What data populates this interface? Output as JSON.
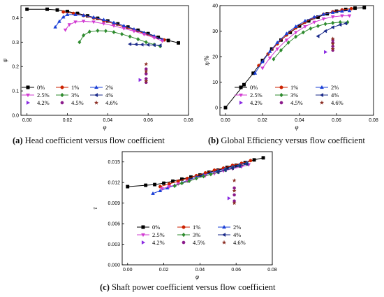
{
  "captions": [
    {
      "tag": "(a)",
      "text": "Head coefficient versus flow coefficient"
    },
    {
      "tag": "(b)",
      "text": "Global Efficiency versus flow coefficient"
    },
    {
      "tag": "(c)",
      "text": "Shaft power coefficient versus flow coefficient"
    }
  ],
  "series_style": [
    {
      "name": "0%",
      "color": "#000000",
      "marker": "square"
    },
    {
      "name": "1%",
      "color": "#cc2200",
      "marker": "circle"
    },
    {
      "name": "2%",
      "color": "#1a3fd6",
      "marker": "triangle-up"
    },
    {
      "name": "2.5%",
      "color": "#d23cd2",
      "marker": "triangle-down"
    },
    {
      "name": "3%",
      "color": "#2e8b2e",
      "marker": "diamond"
    },
    {
      "name": "4%",
      "color": "#1a2a8a",
      "marker": "triangle-left"
    },
    {
      "name": "4.2%",
      "color": "#8a2be2",
      "marker": "triangle-right"
    },
    {
      "name": "4.5%",
      "color": "#8b1a8b",
      "marker": "hexagon"
    },
    {
      "name": "4.6%",
      "color": "#8b2c22",
      "marker": "star"
    }
  ],
  "chart_data": [
    {
      "id": "head",
      "type": "line",
      "title": "",
      "xlabel": "φ",
      "ylabel": "ψ",
      "xlim": [
        -0.003,
        0.08
      ],
      "ylim": [
        0.0,
        0.45
      ],
      "xticks": [
        "0.00",
        "0.02",
        "0.04",
        "0.06",
        "0.08"
      ],
      "xtick_values": [
        0,
        0.02,
        0.04,
        0.06,
        0.08
      ],
      "yticks": [
        "0.0",
        "0.1",
        "0.2",
        "0.3",
        "0.4"
      ],
      "ytick_values": [
        0,
        0.1,
        0.2,
        0.3,
        0.4
      ],
      "legend_position": "bottom-left",
      "series": [
        {
          "name": "0%",
          "x": [
            0.0,
            0.01,
            0.015,
            0.02,
            0.025,
            0.03,
            0.035,
            0.04,
            0.045,
            0.05,
            0.055,
            0.06,
            0.065,
            0.07,
            0.075
          ],
          "y": [
            0.435,
            0.435,
            0.432,
            0.426,
            0.418,
            0.408,
            0.398,
            0.387,
            0.375,
            0.362,
            0.349,
            0.335,
            0.32,
            0.307,
            0.297
          ]
        },
        {
          "name": "1%",
          "x": [
            0.018,
            0.023,
            0.028,
            0.033,
            0.038,
            0.043,
            0.048,
            0.053,
            0.058,
            0.063,
            0.068
          ],
          "y": [
            0.424,
            0.418,
            0.409,
            0.399,
            0.388,
            0.376,
            0.363,
            0.35,
            0.336,
            0.322,
            0.309
          ]
        },
        {
          "name": "2%",
          "x": [
            0.014,
            0.016,
            0.018,
            0.02,
            0.024,
            0.028,
            0.033,
            0.038,
            0.043,
            0.048,
            0.053,
            0.058,
            0.063,
            0.067
          ],
          "y": [
            0.362,
            0.385,
            0.403,
            0.413,
            0.413,
            0.41,
            0.402,
            0.392,
            0.38,
            0.367,
            0.353,
            0.339,
            0.325,
            0.31
          ]
        },
        {
          "name": "2.5%",
          "x": [
            0.019,
            0.021,
            0.024,
            0.028,
            0.033,
            0.038,
            0.043,
            0.048,
            0.053,
            0.058,
            0.063,
            0.067
          ],
          "y": [
            0.35,
            0.372,
            0.383,
            0.386,
            0.383,
            0.376,
            0.367,
            0.356,
            0.345,
            0.332,
            0.318,
            0.305
          ]
        },
        {
          "name": "3%",
          "x": [
            0.026,
            0.028,
            0.031,
            0.035,
            0.039,
            0.043,
            0.047,
            0.051,
            0.055,
            0.059,
            0.063,
            0.066
          ],
          "y": [
            0.3,
            0.328,
            0.343,
            0.347,
            0.346,
            0.341,
            0.333,
            0.323,
            0.312,
            0.3,
            0.29,
            0.283
          ]
        },
        {
          "name": "4%",
          "x": [
            0.051,
            0.054,
            0.057,
            0.06,
            0.063,
            0.066
          ],
          "y": [
            0.292,
            0.291,
            0.29,
            0.289,
            0.288,
            0.287
          ]
        },
        {
          "name": "4.2%",
          "x": [
            0.056
          ],
          "y": [
            0.145
          ]
        },
        {
          "name": "4.5%",
          "x": [
            0.059,
            0.059,
            0.059,
            0.059
          ],
          "y": [
            0.135,
            0.15,
            0.17,
            0.19
          ]
        },
        {
          "name": "4.6%",
          "x": [
            0.059,
            0.059,
            0.059
          ],
          "y": [
            0.14,
            0.18,
            0.21
          ]
        }
      ]
    },
    {
      "id": "efficiency",
      "type": "line",
      "title": "",
      "xlabel": "φ",
      "ylabel": "η/%",
      "xlim": [
        -0.003,
        0.08
      ],
      "ylim": [
        -3,
        40
      ],
      "xticks": [
        "0.00",
        "0.02",
        "0.04",
        "0.06",
        "0.08"
      ],
      "xtick_values": [
        0,
        0.02,
        0.04,
        0.06,
        0.08
      ],
      "yticks": [
        "0",
        "10",
        "20",
        "30",
        "40"
      ],
      "ytick_values": [
        0,
        10,
        20,
        30,
        40
      ],
      "legend_position": "bottom-right",
      "series": [
        {
          "name": "0%",
          "x": [
            0.0,
            0.01,
            0.015,
            0.02,
            0.025,
            0.03,
            0.035,
            0.04,
            0.045,
            0.05,
            0.055,
            0.06,
            0.065,
            0.07,
            0.075
          ],
          "y": [
            0.0,
            9.0,
            13.5,
            18.5,
            23.0,
            26.5,
            29.5,
            32.0,
            34.0,
            35.5,
            36.8,
            37.8,
            38.5,
            39.0,
            39.2
          ]
        },
        {
          "name": "1%",
          "x": [
            0.018,
            0.023,
            0.028,
            0.033,
            0.038,
            0.043,
            0.048,
            0.053,
            0.058,
            0.063,
            0.068
          ],
          "y": [
            16.5,
            21.0,
            25.0,
            28.5,
            31.3,
            33.5,
            35.3,
            36.6,
            37.6,
            38.3,
            38.8
          ]
        },
        {
          "name": "2%",
          "x": [
            0.016,
            0.02,
            0.024,
            0.028,
            0.033,
            0.038,
            0.043,
            0.048,
            0.053,
            0.058,
            0.063,
            0.067
          ],
          "y": [
            13.5,
            18.0,
            22.0,
            25.5,
            29.0,
            31.8,
            34.0,
            35.5,
            36.6,
            37.3,
            37.8,
            38.0
          ]
        },
        {
          "name": "2.5%",
          "x": [
            0.02,
            0.024,
            0.028,
            0.033,
            0.038,
            0.043,
            0.048,
            0.053,
            0.058,
            0.063,
            0.067
          ],
          "y": [
            15.5,
            19.5,
            23.0,
            26.5,
            29.5,
            31.8,
            33.5,
            34.8,
            35.6,
            36.0,
            36.0
          ]
        },
        {
          "name": "3%",
          "x": [
            0.026,
            0.03,
            0.034,
            0.038,
            0.042,
            0.046,
            0.05,
            0.054,
            0.058,
            0.062,
            0.066
          ],
          "y": [
            19.0,
            22.5,
            25.5,
            27.8,
            29.5,
            31.0,
            32.0,
            32.8,
            33.2,
            33.5,
            33.5
          ]
        },
        {
          "name": "4%",
          "x": [
            0.05,
            0.054,
            0.058,
            0.062,
            0.065
          ],
          "y": [
            28.0,
            30.0,
            31.5,
            32.5,
            33.0
          ]
        },
        {
          "name": "4.2%",
          "x": [
            0.054
          ],
          "y": [
            21.8
          ]
        },
        {
          "name": "4.5%",
          "x": [
            0.058,
            0.058,
            0.058,
            0.058
          ],
          "y": [
            22.5,
            24.0,
            25.5,
            26.5
          ]
        },
        {
          "name": "4.6%",
          "x": [
            0.058,
            0.058,
            0.058
          ],
          "y": [
            23.0,
            25.0,
            27.0
          ]
        }
      ]
    },
    {
      "id": "power",
      "type": "line",
      "title": "",
      "xlabel": "φ",
      "ylabel": "τ",
      "xlim": [
        -0.003,
        0.08
      ],
      "ylim": [
        0.0,
        0.0165
      ],
      "xticks": [
        "0.00",
        "0.02",
        "0.04",
        "0.06",
        "0.08"
      ],
      "xtick_values": [
        0,
        0.02,
        0.04,
        0.06,
        0.08
      ],
      "yticks": [
        "0.000",
        "0.003",
        "0.006",
        "0.009",
        "0.012",
        "0.015"
      ],
      "ytick_values": [
        0,
        0.003,
        0.006,
        0.009,
        0.012,
        0.015
      ],
      "legend_position": "bottom-right",
      "series": [
        {
          "name": "0%",
          "x": [
            0.0,
            0.01,
            0.015,
            0.02,
            0.025,
            0.03,
            0.035,
            0.04,
            0.045,
            0.05,
            0.055,
            0.06,
            0.065,
            0.07,
            0.075
          ],
          "y": [
            0.0114,
            0.0116,
            0.0117,
            0.0119,
            0.0122,
            0.0125,
            0.0128,
            0.0131,
            0.0135,
            0.0138,
            0.0142,
            0.0145,
            0.0149,
            0.0153,
            0.0156
          ]
        },
        {
          "name": "1%",
          "x": [
            0.018,
            0.023,
            0.028,
            0.033,
            0.038,
            0.043,
            0.048,
            0.053,
            0.058,
            0.063,
            0.068
          ],
          "y": [
            0.0114,
            0.0118,
            0.0122,
            0.0126,
            0.013,
            0.0134,
            0.0138,
            0.0141,
            0.0145,
            0.0148,
            0.0152
          ]
        },
        {
          "name": "2%",
          "x": [
            0.014,
            0.018,
            0.022,
            0.026,
            0.03,
            0.034,
            0.038,
            0.042,
            0.046,
            0.05,
            0.054,
            0.058,
            0.062,
            0.066
          ],
          "y": [
            0.0104,
            0.0108,
            0.0112,
            0.0116,
            0.012,
            0.0124,
            0.0128,
            0.0131,
            0.0134,
            0.0137,
            0.014,
            0.0143,
            0.0146,
            0.0149
          ]
        },
        {
          "name": "2.5%",
          "x": [
            0.019,
            0.023,
            0.028,
            0.033,
            0.038,
            0.043,
            0.048,
            0.053,
            0.058,
            0.063,
            0.067
          ],
          "y": [
            0.0111,
            0.0114,
            0.0118,
            0.0122,
            0.0126,
            0.013,
            0.0133,
            0.0137,
            0.014,
            0.0143,
            0.0146
          ]
        },
        {
          "name": "3%",
          "x": [
            0.026,
            0.03,
            0.034,
            0.038,
            0.042,
            0.046,
            0.05,
            0.054,
            0.058,
            0.062,
            0.066
          ],
          "y": [
            0.0115,
            0.0119,
            0.0122,
            0.0126,
            0.0129,
            0.0132,
            0.0135,
            0.0138,
            0.0141,
            0.0144,
            0.0147
          ]
        },
        {
          "name": "4%",
          "x": [
            0.05,
            0.054,
            0.058,
            0.062,
            0.066
          ],
          "y": [
            0.0135,
            0.0138,
            0.0141,
            0.0144,
            0.0147
          ]
        },
        {
          "name": "4.2%",
          "x": [
            0.056
          ],
          "y": [
            0.0097
          ]
        },
        {
          "name": "4.5%",
          "x": [
            0.059,
            0.059,
            0.059
          ],
          "y": [
            0.0093,
            0.0102,
            0.0112
          ]
        },
        {
          "name": "4.6%",
          "x": [
            0.059,
            0.059,
            0.059
          ],
          "y": [
            0.009,
            0.0108,
            0.0123
          ]
        }
      ]
    }
  ]
}
